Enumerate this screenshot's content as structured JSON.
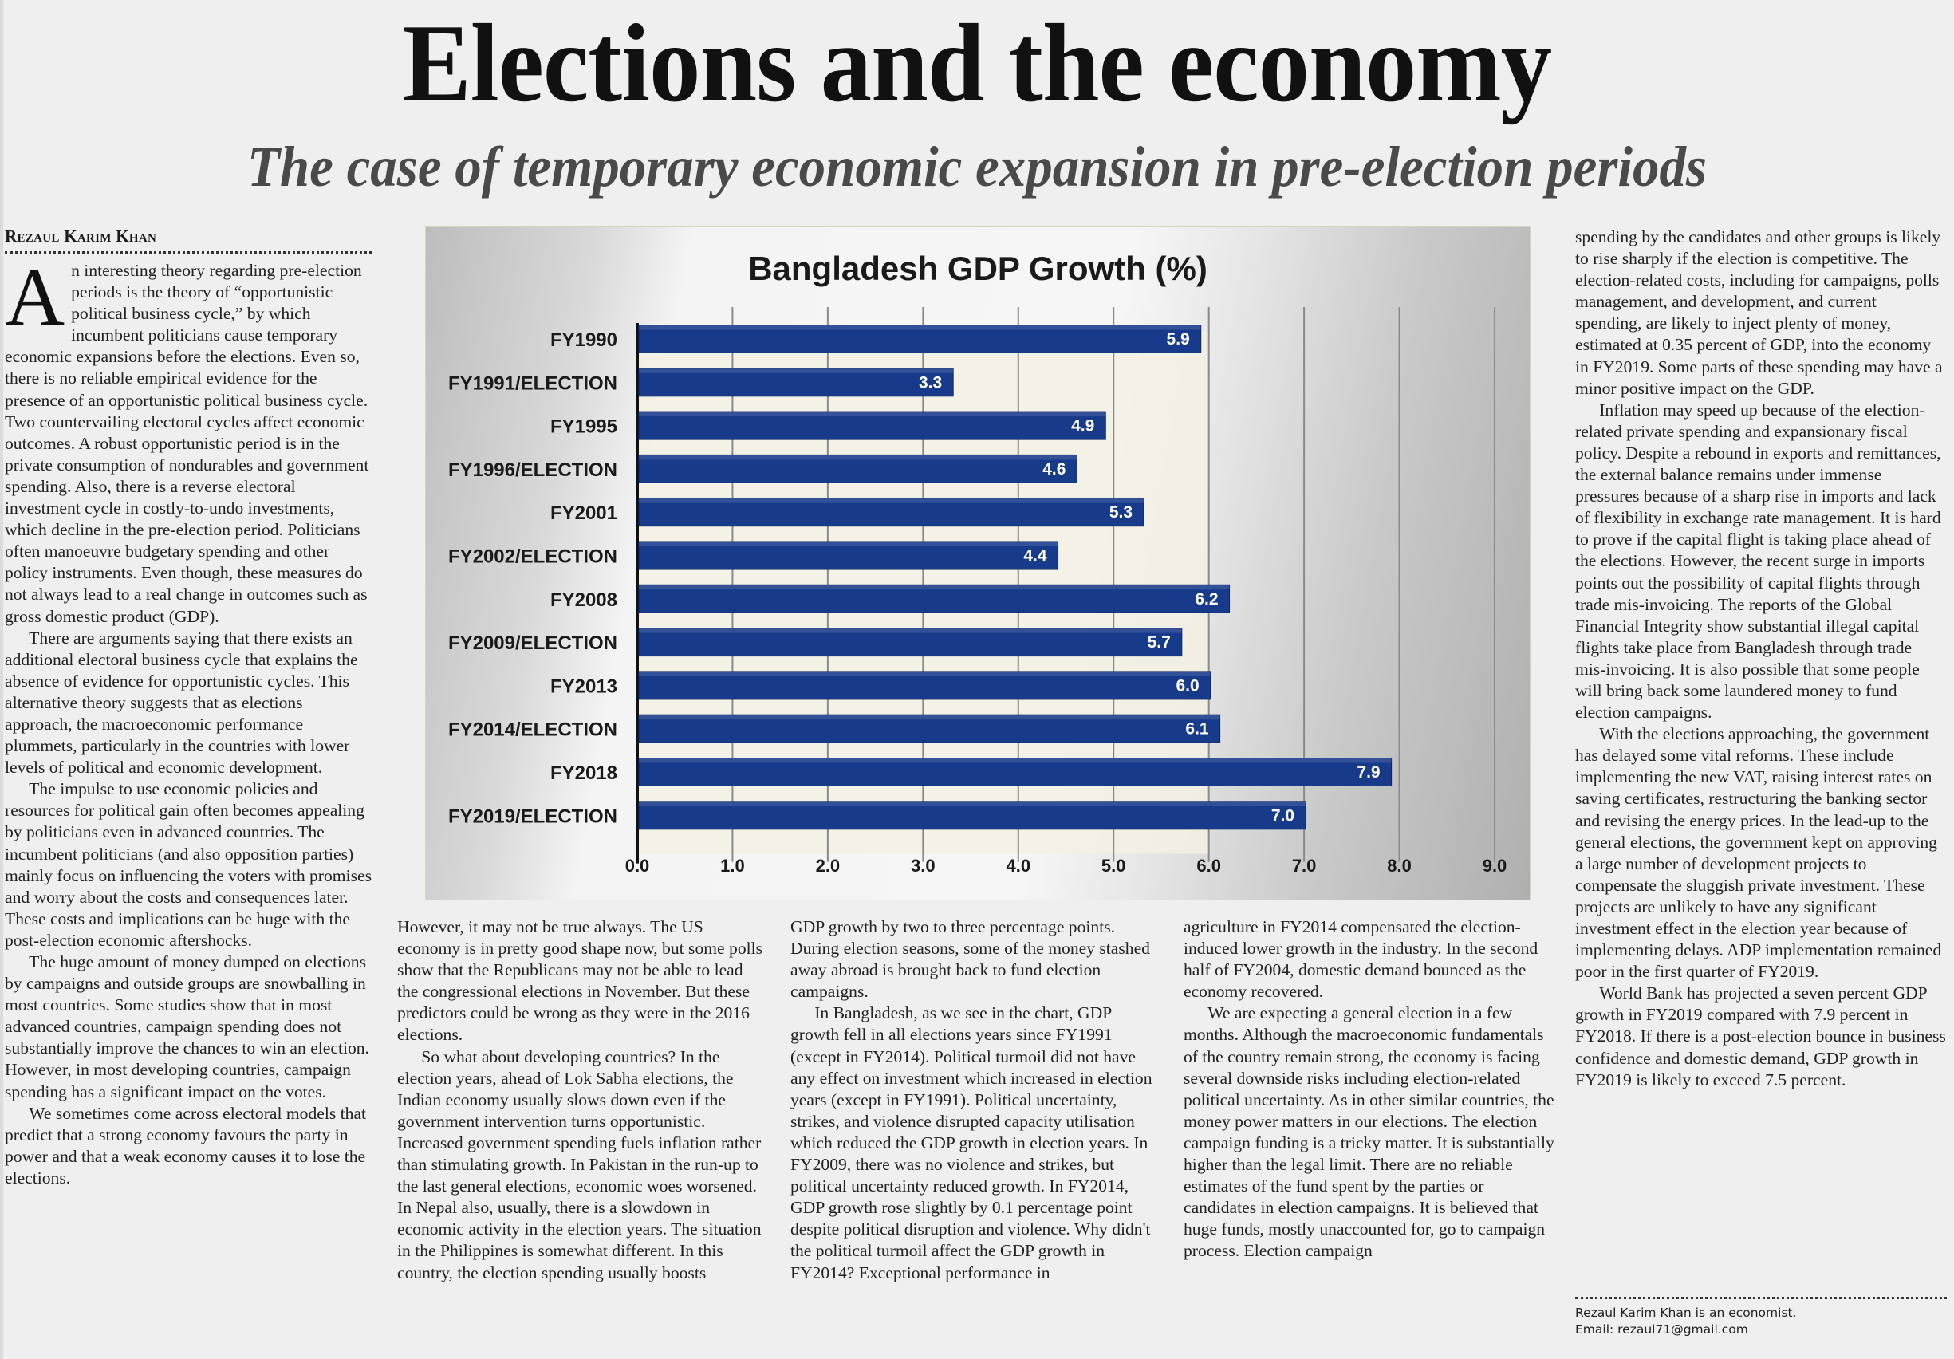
{
  "article": {
    "headline": "Elections and the economy",
    "subheadline": "The case of temporary economic expansion in pre-election periods",
    "byline": "Rezaul Karim Khan",
    "dropcap": "A",
    "columns": [
      {
        "paragraphs": [
          "n interesting theory regarding pre-election periods is the theory of “opportunistic political business cycle,” by which incumbent politicians cause temporary economic expansions before the elections. Even so, there is no reliable empirical evidence for the presence of an opportunistic political business cycle. Two countervailing electoral cycles affect economic outcomes. A robust opportunistic period is in the private consumption of nondurables and government spending. Also, there is a reverse electoral investment cycle in costly-to-undo investments, which decline in the pre-election period. Politicians often manoeuvre budgetary spending and other policy instruments. Even though, these measures do not always lead to a real change in outcomes such as gross domestic product (GDP).",
          "There are arguments saying that there exists an additional electoral business cycle that explains the absence of evidence for opportunistic cycles. This alternative theory suggests that as elections approach, the macroeconomic performance plummets, particularly in the countries with lower levels of political and economic development.",
          "The impulse to use economic policies and resources for political gain often becomes appealing by politicians even in advanced countries. The incumbent politicians (and also opposition parties) mainly focus on influencing the voters with promises and worry about the costs and consequences later. These costs and implications can be huge with the post-election economic aftershocks.",
          "The huge amount of money dumped on elections by campaigns and outside groups are snowballing in most countries. Some studies show that in most advanced countries, campaign spending does not substantially improve the chances to win an election. However, in most developing countries, campaign spending has a significant impact on the votes.",
          "We sometimes come across electoral models that predict that a strong economy favours the party in power and that a weak economy causes it to lose the elections."
        ]
      },
      {
        "paragraphs": [
          "However, it may not be true always. The US economy is in pretty good shape now, but some polls show that the Republicans may not be able to lead the congressional elections in November. But these predictors could be wrong as they were in the 2016 elections.",
          "So what about developing countries? In the election years, ahead of Lok Sabha elections, the Indian economy usually slows down even if the government intervention turns opportunistic. Increased government spending fuels inflation rather than stimulating growth. In Pakistan in the run-up to the last general elections, economic woes worsened. In Nepal also, usually, there is a slowdown in economic activity in the election years. The situation in the Philippines is somewhat different. In this country, the election spending usually boosts"
        ]
      },
      {
        "paragraphs": [
          "GDP growth by two to three percentage points. During election seasons, some of the money stashed away abroad is brought back to fund election campaigns.",
          "In Bangladesh, as we see in the chart, GDP growth fell in all elections years since FY1991 (except in FY2014). Political turmoil did not have any effect on investment which increased in election years (except in FY1991). Political uncertainty, strikes, and violence disrupted capacity utilisation which reduced the GDP growth in election years. In FY2009, there was no violence and strikes, but political uncertainty reduced growth. In FY2014, GDP growth rose slightly by 0.1 percentage point despite political disruption and violence. Why didn't the political turmoil affect the GDP growth in FY2014? Exceptional performance in"
        ]
      },
      {
        "paragraphs": [
          "agriculture in FY2014 compensated the election-induced lower growth in the industry. In the second half of FY2004, domestic demand bounced as the economy recovered.",
          "We are expecting a general election in a few months. Although the macroeconomic fundamentals of the country remain strong, the economy is facing several downside risks including election-related political uncertainty. As in other similar countries, the money power matters in our elections. The election campaign funding is a tricky matter. It is substantially higher than the legal limit. There are no reliable estimates of the fund spent by the parties or candidates in election campaigns. It is believed that huge funds, mostly unaccounted for, go to campaign process. Election campaign"
        ]
      },
      {
        "paragraphs": [
          "spending by the candidates and other groups is likely to rise sharply if the election is competitive. The election-related costs, including for campaigns, polls management, and development, and current spending, are likely to inject plenty of money, estimated at 0.35 percent of GDP, into the economy in FY2019. Some parts of these spending may have a minor positive impact on the GDP.",
          "Inflation may speed up because of the election-related private spending and expansionary fiscal policy. Despite a rebound in exports and remittances, the external balance remains under immense pressures because of a sharp rise in imports and lack of flexibility in exchange rate management. It is hard to prove if the capital flight is taking place ahead of the elections. However, the recent surge in imports points out the possibility of capital flights through trade mis-invoicing. The reports of the Global Financial Integrity show substantial illegal capital flights take place from Bangladesh through trade mis-invoicing. It is also possible that some people will bring back some laundered money to fund election campaigns.",
          "With the elections approaching, the government has delayed some vital reforms. These include implementing the new VAT, raising interest rates on saving certificates, restructuring the banking sector and revising the energy prices. In the lead-up to the general elections, the government kept on approving a large number of development projects to compensate the sluggish private investment. These projects are unlikely to have any significant investment effect in the election year because of implementing delays. ADP implementation remained poor in the first quarter of FY2019.",
          "World Bank has projected a seven percent GDP growth in FY2019 compared with 7.9 percent in FY2018. If there is a post-election bounce in business confidence and domestic demand, GDP growth in FY2019 is likely to exceed 7.5 percent."
        ]
      }
    ],
    "author_note": "Rezaul Karim Khan is an economist.",
    "author_email": "Email: rezaul71@gmail.com"
  },
  "chart_data": {
    "type": "bar",
    "orientation": "horizontal",
    "title": "Bangladesh GDP Growth (%)",
    "xlabel": "",
    "ylabel": "",
    "categories": [
      "FY1990",
      "FY1991/ELECTION",
      "FY1995",
      "FY1996/ELECTION",
      "FY2001",
      "FY2002/ELECTION",
      "FY2008",
      "FY2009/ELECTION",
      "FY2013",
      "FY2014/ELECTION",
      "FY2018",
      "FY2019/ELECTION"
    ],
    "values": [
      5.9,
      3.3,
      4.9,
      4.6,
      5.3,
      4.4,
      6.2,
      5.7,
      6.0,
      6.1,
      7.9,
      7.0
    ],
    "value_labels": [
      "5.9",
      "3.3",
      "4.9",
      "4.6",
      "5.3",
      "4.4",
      "6.2",
      "5.7",
      "6.0",
      "6.1",
      "7.9",
      "7.0"
    ],
    "xlim": [
      0,
      9
    ],
    "xticks": [
      0,
      1,
      2,
      3,
      4,
      5,
      6,
      7,
      8,
      9
    ],
    "xtick_labels": [
      "0.0",
      "1.0",
      "2.0",
      "3.0",
      "4.0",
      "5.0",
      "6.0",
      "7.0",
      "8.0",
      "9.0"
    ],
    "grid": true,
    "legend": "none",
    "bar_color": "#173a8a"
  }
}
